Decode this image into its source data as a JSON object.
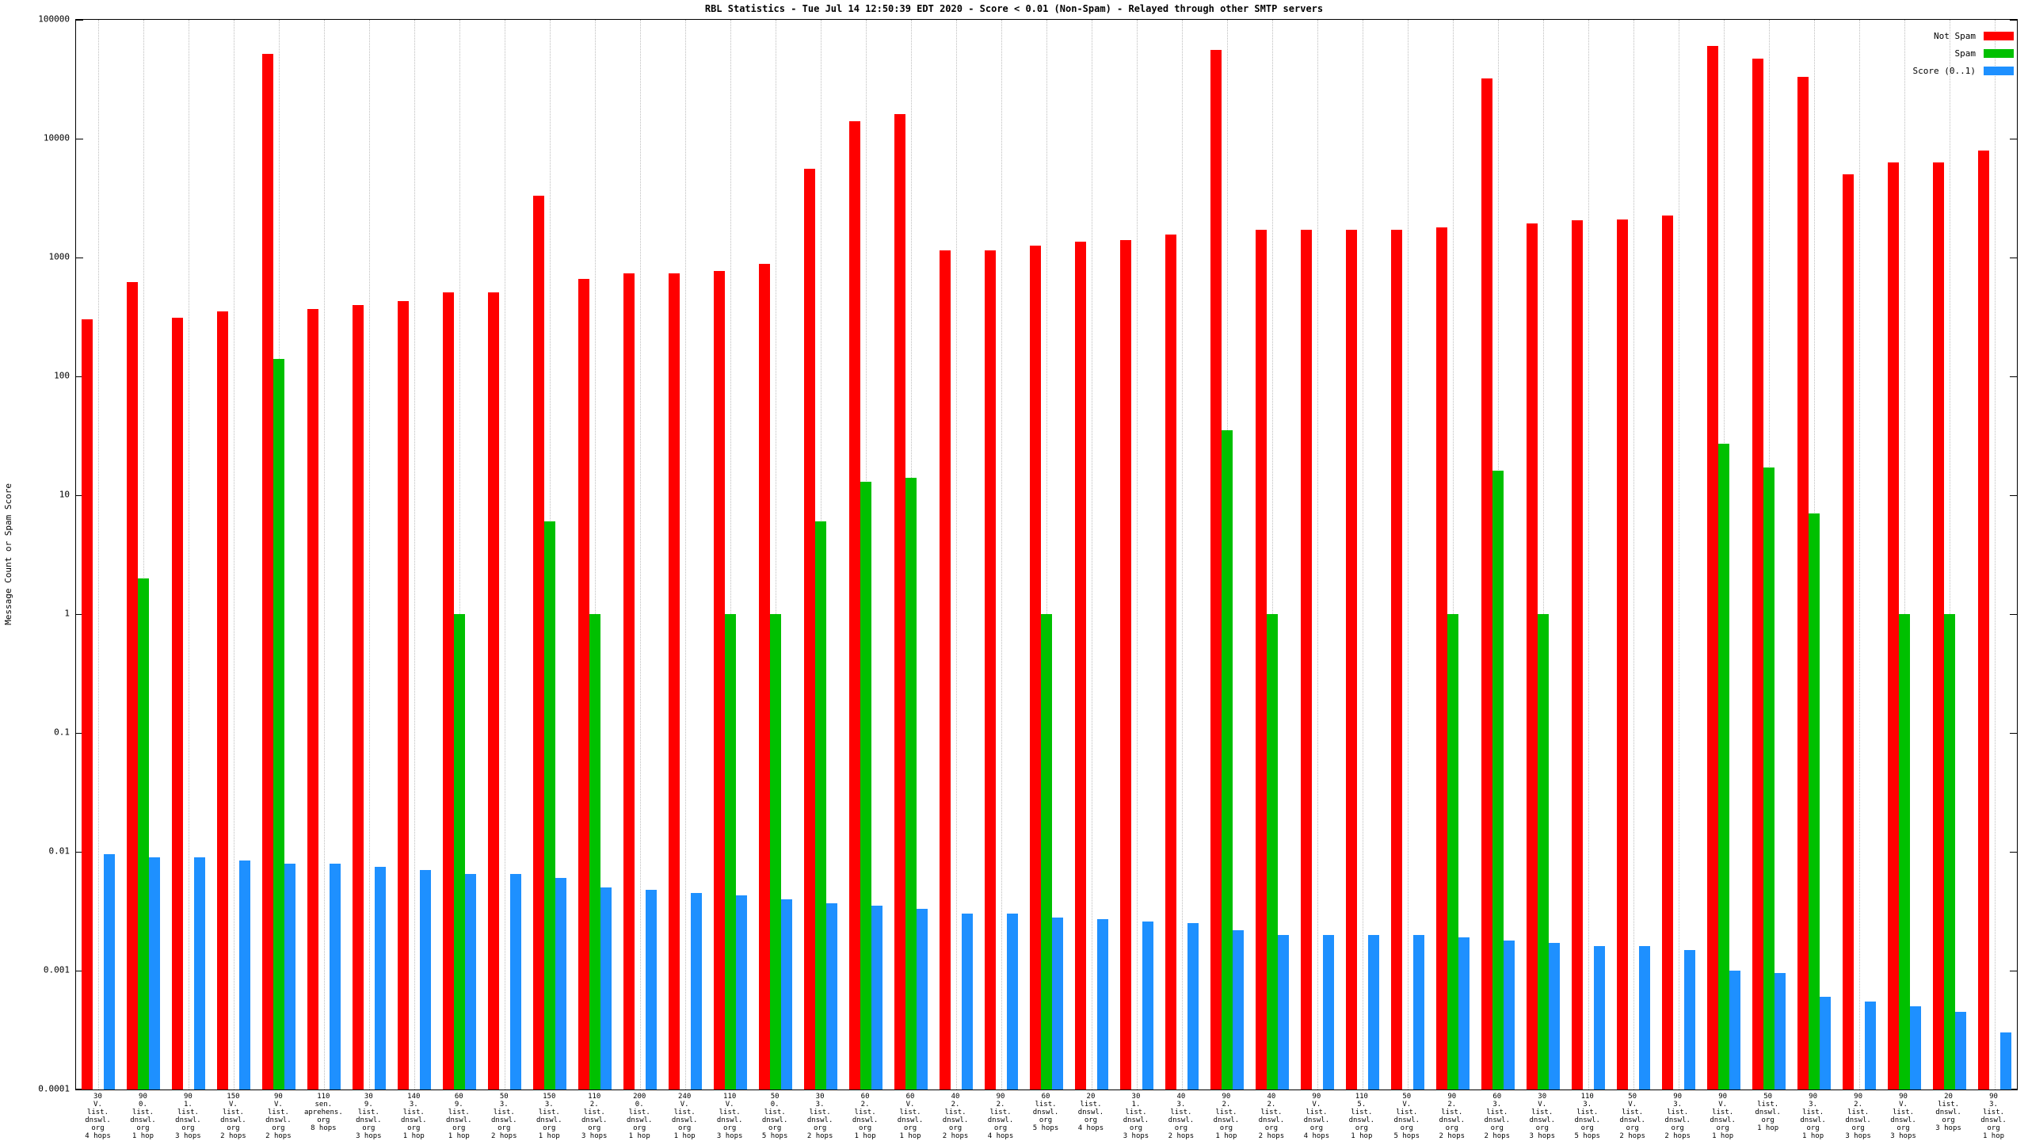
{
  "title": "RBL Statistics - Tue Jul 14 12:50:39 EDT 2020 - Score < 0.01 (Non-Spam) - Relayed through other SMTP servers",
  "y_axis_label": "Message Count or Spam Score",
  "legend": [
    {
      "label": "Not Spam",
      "color": "#ff0000"
    },
    {
      "label": "Spam",
      "color": "#00c000"
    },
    {
      "label": "Score (0..1)",
      "color": "#1e90ff"
    }
  ],
  "chart_data": {
    "type": "bar",
    "scale": "log",
    "title": "RBL Statistics - Tue Jul 14 12:50:39 EDT 2020 - Score < 0.01 (Non-Spam) - Relayed through other SMTP servers",
    "xlabel": "",
    "ylabel": "Message Count or Spam Score",
    "ylim": [
      0.0001,
      100000
    ],
    "y_ticks": [
      "100000",
      "10000",
      "1000",
      "100",
      "10",
      "1",
      "0.1",
      "0.01",
      "0.001",
      "0.0001"
    ],
    "grid": "vertical-dotted",
    "legend_position": "top-right",
    "categories": [
      [
        "30",
        "V.",
        "list.",
        "dnswl.",
        "org",
        "4 hops"
      ],
      [
        "90",
        "0.",
        "list.",
        "dnswl.",
        "org",
        "1 hop"
      ],
      [
        "90",
        "1.",
        "list.",
        "dnswl.",
        "org",
        "3 hops"
      ],
      [
        "150",
        "V.",
        "list.",
        "dnswl.",
        "org",
        "2 hops"
      ],
      [
        "90",
        "V.",
        "list.",
        "dnswl.",
        "org",
        "2 hops"
      ],
      [
        "110",
        "sen.",
        "aprehens.",
        "org",
        "8 hops"
      ],
      [
        "30",
        "9.",
        "list.",
        "dnswl.",
        "org",
        "3 hops"
      ],
      [
        "140",
        "3.",
        "list.",
        "dnswl.",
        "org",
        "1 hop"
      ],
      [
        "60",
        "9.",
        "list.",
        "dnswl.",
        "org",
        "1 hop"
      ],
      [
        "50",
        "3.",
        "list.",
        "dnswl.",
        "org",
        "2 hops"
      ],
      [
        "150",
        "3.",
        "list.",
        "dnswl.",
        "org",
        "1 hop"
      ],
      [
        "110",
        "2.",
        "list.",
        "dnswl.",
        "org",
        "3 hops"
      ],
      [
        "200",
        "0.",
        "list.",
        "dnswl.",
        "org",
        "1 hop"
      ],
      [
        "240",
        "V.",
        "list.",
        "dnswl.",
        "org",
        "1 hop"
      ],
      [
        "110",
        "V.",
        "list.",
        "dnswl.",
        "org",
        "3 hops"
      ],
      [
        "50",
        "0.",
        "list.",
        "dnswl.",
        "org",
        "5 hops"
      ],
      [
        "30",
        "3.",
        "list.",
        "dnswl.",
        "org",
        "2 hops"
      ],
      [
        "60",
        "2.",
        "list.",
        "dnswl.",
        "org",
        "1 hop"
      ],
      [
        "60",
        "V.",
        "list.",
        "dnswl.",
        "org",
        "1 hop"
      ],
      [
        "40",
        "2.",
        "list.",
        "dnswl.",
        "org",
        "2 hops"
      ],
      [
        "90",
        "2.",
        "list.",
        "dnswl.",
        "org",
        "4 hops"
      ],
      [
        "60",
        "list.",
        "dnswl.",
        "org",
        "5 hops"
      ],
      [
        "20",
        "list.",
        "dnswl.",
        "org",
        "4 hops"
      ],
      [
        "30",
        "1.",
        "list.",
        "dnswl.",
        "org",
        "3 hops"
      ],
      [
        "40",
        "3.",
        "list.",
        "dnswl.",
        "org",
        "2 hops"
      ],
      [
        "90",
        "2.",
        "list.",
        "dnswl.",
        "org",
        "1 hop"
      ],
      [
        "40",
        "2.",
        "list.",
        "dnswl.",
        "org",
        "2 hops"
      ],
      [
        "90",
        "V.",
        "list.",
        "dnswl.",
        "org",
        "4 hops"
      ],
      [
        "110",
        "5.",
        "list.",
        "dnswl.",
        "org",
        "1 hop"
      ],
      [
        "50",
        "V.",
        "list.",
        "dnswl.",
        "org",
        "5 hops"
      ],
      [
        "90",
        "2.",
        "list.",
        "dnswl.",
        "org",
        "2 hops"
      ],
      [
        "60",
        "3.",
        "list.",
        "dnswl.",
        "org",
        "2 hops"
      ],
      [
        "30",
        "V.",
        "list.",
        "dnswl.",
        "org",
        "3 hops"
      ],
      [
        "110",
        "3.",
        "list.",
        "dnswl.",
        "org",
        "5 hops"
      ],
      [
        "50",
        "V.",
        "list.",
        "dnswl.",
        "org",
        "2 hops"
      ],
      [
        "90",
        "3.",
        "list.",
        "dnswl.",
        "org",
        "2 hops"
      ],
      [
        "90",
        "V.",
        "list.",
        "dnswl.",
        "org",
        "1 hop"
      ],
      [
        "50",
        "list.",
        "dnswl.",
        "org",
        "1 hop"
      ],
      [
        "90",
        "3.",
        "list.",
        "dnswl.",
        "org",
        "1 hop"
      ],
      [
        "90",
        "2.",
        "list.",
        "dnswl.",
        "org",
        "3 hops"
      ],
      [
        "90",
        "V.",
        "list.",
        "dnswl.",
        "org",
        "3 hops"
      ],
      [
        "20",
        "list.",
        "dnswl.",
        "org",
        "3 hops"
      ],
      [
        "90",
        "3.",
        "list.",
        "dnswl.",
        "org",
        "1 hop"
      ]
    ],
    "series": [
      {
        "name": "Not Spam",
        "color": "#ff0000",
        "values": [
          300,
          620,
          310,
          350,
          52000,
          370,
          400,
          430,
          510,
          510,
          3300,
          660,
          740,
          740,
          770,
          880,
          5600,
          14000,
          16000,
          1150,
          1150,
          1250,
          1350,
          1400,
          1550,
          56000,
          1700,
          1700,
          1700,
          1700,
          1800,
          32000,
          1950,
          2050,
          2100,
          2250,
          60000,
          47000,
          33000,
          5000,
          6300,
          6300,
          8000
        ]
      },
      {
        "name": "Spam",
        "color": "#00c000",
        "values": [
          0,
          2,
          0,
          0,
          140,
          0,
          0,
          0,
          1,
          0,
          6,
          1,
          0,
          0,
          1,
          1,
          6,
          13,
          14,
          0,
          0,
          1,
          0,
          0,
          0,
          35,
          1,
          0,
          0,
          0,
          1,
          16,
          1,
          0,
          0,
          0,
          27,
          17,
          7,
          0,
          1,
          1,
          0
        ]
      },
      {
        "name": "Score (0..1)",
        "color": "#1e90ff",
        "values": [
          0.0095,
          0.009,
          0.009,
          0.0085,
          0.008,
          0.008,
          0.0075,
          0.007,
          0.0065,
          0.0065,
          0.006,
          0.005,
          0.0048,
          0.0045,
          0.0043,
          0.004,
          0.0037,
          0.0035,
          0.0033,
          0.003,
          0.003,
          0.0028,
          0.0027,
          0.0026,
          0.0025,
          0.0022,
          0.002,
          0.002,
          0.002,
          0.002,
          0.0019,
          0.0018,
          0.0017,
          0.0016,
          0.0016,
          0.0015,
          0.001,
          0.00095,
          0.0006,
          0.00055,
          0.0005,
          0.00045,
          0.0003
        ]
      }
    ]
  }
}
